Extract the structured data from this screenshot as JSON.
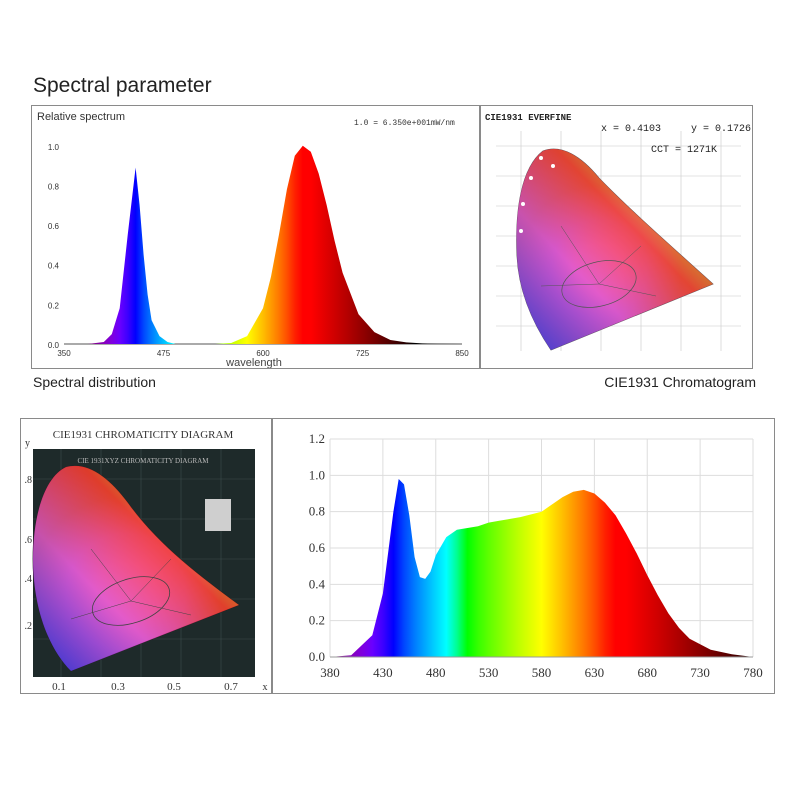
{
  "page": {
    "title": "Spectral parameter",
    "caption_left": "Spectral distribution",
    "caption_right": "CIE1931 Chromatogram"
  },
  "colors": {
    "frame": "#8a8a8a",
    "grid": "#dddddd",
    "dark_panel": "#1e2a2a"
  },
  "chart_data": [
    {
      "type": "area",
      "ylabel": "Relative spectrum",
      "xlabel": "wavelength",
      "note": "1.0 = 6.350e+001mW/nm",
      "xlim": [
        350,
        850
      ],
      "ylim": [
        0,
        1.1
      ],
      "xticks": [
        "350",
        "475",
        "600",
        "725",
        "850"
      ],
      "yticks": [
        "0.0",
        "0.2",
        "0.4",
        "0.6",
        "0.8",
        "1.0"
      ],
      "x": [
        350,
        380,
        400,
        410,
        420,
        430,
        440,
        445,
        450,
        455,
        460,
        470,
        480,
        490,
        500,
        520,
        540,
        560,
        580,
        600,
        610,
        620,
        630,
        640,
        650,
        660,
        670,
        680,
        690,
        700,
        720,
        740,
        760,
        780,
        800,
        820,
        850
      ],
      "y": [
        0,
        0,
        0.01,
        0.05,
        0.18,
        0.55,
        0.89,
        0.7,
        0.45,
        0.25,
        0.12,
        0.04,
        0.01,
        0,
        0,
        0,
        0,
        0.005,
        0.04,
        0.18,
        0.34,
        0.55,
        0.78,
        0.95,
        1.0,
        0.97,
        0.86,
        0.7,
        0.52,
        0.36,
        0.15,
        0.06,
        0.02,
        0.008,
        0.003,
        0.001,
        0
      ]
    },
    {
      "type": "scatter",
      "title": "CIE1931  EVERFINE",
      "readout_x": "x = 0.4103",
      "readout_y": "y = 0.1726",
      "cct": "CCT = 1271K"
    },
    {
      "type": "scatter",
      "title": "CIE1931 CHROMATICITY DIAGRAM",
      "subtitle": "CIE 1931XYZ CHROMATICITY DIAGRAM",
      "xlabel": "x",
      "ylabel": "y",
      "xticks": [
        "0.1",
        "0.3",
        "0.5",
        "0.7"
      ],
      "yticks": [
        ".8",
        ".6",
        ".4",
        ".2"
      ]
    },
    {
      "type": "area",
      "xlim": [
        380,
        780
      ],
      "ylim": [
        0,
        1.2
      ],
      "xticks": [
        "380",
        "430",
        "480",
        "530",
        "580",
        "630",
        "680",
        "730",
        "780"
      ],
      "yticks": [
        "0.0",
        "0.2",
        "0.4",
        "0.6",
        "0.8",
        "1.0",
        "1.2"
      ],
      "x": [
        380,
        400,
        420,
        430,
        440,
        445,
        450,
        455,
        460,
        465,
        470,
        475,
        480,
        490,
        500,
        510,
        520,
        530,
        540,
        560,
        580,
        590,
        600,
        610,
        620,
        630,
        640,
        650,
        660,
        670,
        680,
        690,
        700,
        710,
        720,
        740,
        760,
        780
      ],
      "y": [
        0,
        0.01,
        0.12,
        0.35,
        0.8,
        0.98,
        0.95,
        0.78,
        0.55,
        0.44,
        0.43,
        0.47,
        0.56,
        0.66,
        0.7,
        0.71,
        0.72,
        0.74,
        0.75,
        0.77,
        0.8,
        0.84,
        0.88,
        0.91,
        0.92,
        0.9,
        0.85,
        0.78,
        0.68,
        0.57,
        0.45,
        0.34,
        0.24,
        0.16,
        0.1,
        0.04,
        0.015,
        0
      ]
    }
  ]
}
